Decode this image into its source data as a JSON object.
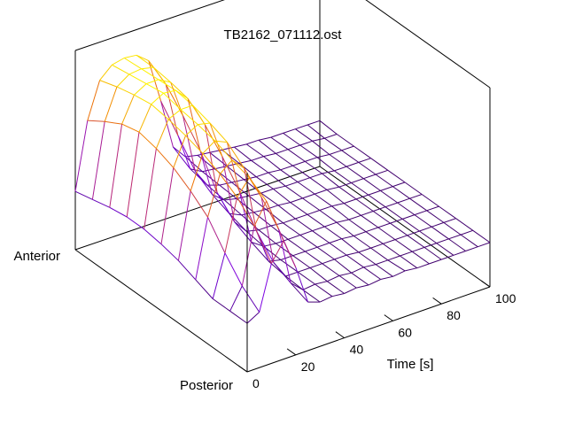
{
  "chart_data": {
    "type": "surface",
    "title": "TB2162_071112.ost",
    "xlabel": "Time [s]",
    "y_end_labels": {
      "near": "Posterior",
      "far": "Anterior"
    },
    "x_ticks": [
      "0",
      "20",
      "40",
      "60",
      "80",
      "100"
    ],
    "xlim": [
      0,
      100
    ],
    "grid": false,
    "colormap": [
      "#3c0064",
      "#7a00e6",
      "#c02a6a",
      "#f07800",
      "#ffff00"
    ],
    "time_s": [
      0,
      5,
      10,
      15,
      20,
      25,
      30,
      35,
      40,
      45,
      50,
      55,
      60,
      65,
      70,
      75,
      80,
      85,
      90,
      95,
      100
    ],
    "position_fraction_posterior_to_anterior": [
      0,
      0.1,
      0.2,
      0.3,
      0.4,
      0.5,
      0.6,
      0.7,
      0.8,
      0.9,
      1.0
    ],
    "relative_level_by_position": [
      [
        0.05,
        0.1,
        0.42,
        0.55,
        0.33,
        0.05,
        0.02,
        0.03,
        0.02,
        0.03,
        0.02,
        0.03,
        0.02,
        0.03,
        0.02,
        0.02,
        0.02,
        0.02,
        0.02,
        0.02,
        0.02
      ],
      [
        0.05,
        0.2,
        0.6,
        0.75,
        0.52,
        0.1,
        0.02,
        0.03,
        0.02,
        0.03,
        0.02,
        0.03,
        0.02,
        0.02,
        0.02,
        0.02,
        0.02,
        0.02,
        0.02,
        0.02,
        0.02
      ],
      [
        0.05,
        0.35,
        0.72,
        0.83,
        0.66,
        0.16,
        0.03,
        0.03,
        0.03,
        0.03,
        0.03,
        0.03,
        0.02,
        0.02,
        0.02,
        0.02,
        0.02,
        0.02,
        0.02,
        0.02,
        0.02
      ],
      [
        0.1,
        0.52,
        0.8,
        0.87,
        0.78,
        0.3,
        0.05,
        0.03,
        0.03,
        0.03,
        0.03,
        0.03,
        0.03,
        0.02,
        0.02,
        0.02,
        0.02,
        0.02,
        0.02,
        0.02,
        0.02
      ],
      [
        0.15,
        0.62,
        0.86,
        0.92,
        0.88,
        0.5,
        0.1,
        0.04,
        0.03,
        0.03,
        0.03,
        0.03,
        0.03,
        0.03,
        0.02,
        0.02,
        0.02,
        0.02,
        0.02,
        0.02,
        0.02
      ],
      [
        0.18,
        0.7,
        0.9,
        0.95,
        0.93,
        0.66,
        0.16,
        0.06,
        0.04,
        0.04,
        0.03,
        0.03,
        0.03,
        0.03,
        0.03,
        0.02,
        0.02,
        0.02,
        0.02,
        0.02,
        0.02
      ],
      [
        0.2,
        0.75,
        0.93,
        0.97,
        0.97,
        0.8,
        0.28,
        0.1,
        0.06,
        0.05,
        0.04,
        0.04,
        0.03,
        0.03,
        0.03,
        0.03,
        0.02,
        0.02,
        0.02,
        0.02,
        0.02
      ],
      [
        0.2,
        0.78,
        0.95,
        1.0,
        0.99,
        0.9,
        0.5,
        0.15,
        0.08,
        0.06,
        0.05,
        0.04,
        0.04,
        0.03,
        0.03,
        0.03,
        0.03,
        0.02,
        0.02,
        0.02,
        0.02
      ],
      [
        0.18,
        0.75,
        0.93,
        0.98,
        0.98,
        0.93,
        0.66,
        0.23,
        0.1,
        0.07,
        0.06,
        0.05,
        0.04,
        0.04,
        0.03,
        0.03,
        0.03,
        0.03,
        0.02,
        0.02,
        0.02
      ],
      [
        0.15,
        0.68,
        0.9,
        0.96,
        0.97,
        0.95,
        0.8,
        0.4,
        0.13,
        0.08,
        0.07,
        0.06,
        0.05,
        0.04,
        0.04,
        0.03,
        0.03,
        0.03,
        0.03,
        0.02,
        0.02
      ],
      [
        0.12,
        0.6,
        0.86,
        0.94,
        0.96,
        0.95,
        0.88,
        0.56,
        0.2,
        0.1,
        0.08,
        0.07,
        0.06,
        0.05,
        0.04,
        0.04,
        0.03,
        0.03,
        0.03,
        0.03,
        0.03
      ]
    ]
  }
}
